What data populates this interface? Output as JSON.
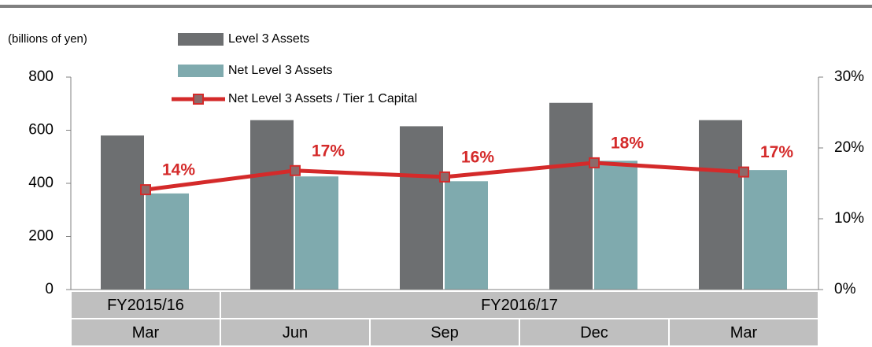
{
  "chart_data": {
    "type": "bar_line",
    "y_label": "(billions of yen)",
    "categories": [
      "Mar",
      "Jun",
      "Sep",
      "Dec",
      "Mar"
    ],
    "category_groups": [
      {
        "label": "FY2015/16",
        "span": 1
      },
      {
        "label": "FY2016/17",
        "span": 4
      }
    ],
    "series": [
      {
        "name": "Level 3 Assets",
        "color": "#6d6f71",
        "type": "bar",
        "values": [
          580,
          638,
          615,
          703,
          638
        ]
      },
      {
        "name": "Net Level 3 Assets",
        "color": "#7faaae",
        "type": "bar",
        "values": [
          362,
          426,
          408,
          485,
          450
        ]
      },
      {
        "name": "Net Level 3 Assets  / Tier 1 Capital",
        "color": "#d42a2a",
        "marker_color": "#8c6a6a",
        "type": "line",
        "axis": "y2",
        "values": [
          14.1,
          16.8,
          15.9,
          17.9,
          16.6
        ],
        "value_labels": [
          "14%",
          "17%",
          "16%",
          "18%",
          "17%"
        ]
      }
    ],
    "ylim": [
      0,
      800
    ],
    "yticks": [
      0,
      200,
      400,
      600,
      800
    ],
    "y2lim": [
      0,
      30
    ],
    "y2ticks": [
      {
        "value": 0,
        "label": "0%"
      },
      {
        "value": 10,
        "label": "10%"
      },
      {
        "value": 20,
        "label": "20%"
      },
      {
        "value": 30,
        "label": "30%"
      }
    ]
  }
}
